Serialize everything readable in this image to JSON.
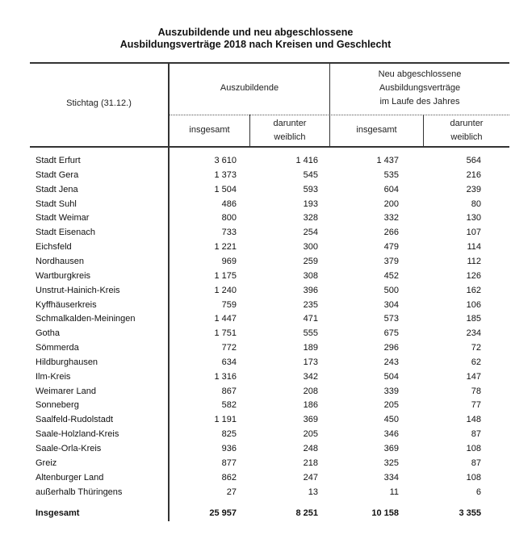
{
  "title": {
    "line1": "Auszubildende und neu abgeschlossene",
    "line2": "Ausbildungsverträge 2018 nach Kreisen und Geschlecht"
  },
  "header": {
    "stub": "Stichtag (31.12.)",
    "group1": "Auszubildende",
    "group2": [
      "Neu abgeschlossene",
      "Ausbildungsverträge",
      "im Laufe des Jahres"
    ],
    "sub_total": "insgesamt",
    "sub_female": [
      "darunter",
      "weiblich"
    ]
  },
  "rows": [
    {
      "name": "Stadt Erfurt",
      "a": "3 610",
      "aw": "1 416",
      "n": "1 437",
      "nw": "564"
    },
    {
      "name": "Stadt Gera",
      "a": "1 373",
      "aw": "545",
      "n": "535",
      "nw": "216"
    },
    {
      "name": "Stadt Jena",
      "a": "1 504",
      "aw": "593",
      "n": "604",
      "nw": "239"
    },
    {
      "name": "Stadt Suhl",
      "a": "486",
      "aw": "193",
      "n": "200",
      "nw": "80"
    },
    {
      "name": "Stadt Weimar",
      "a": "800",
      "aw": "328",
      "n": "332",
      "nw": "130"
    },
    {
      "name": "Stadt Eisenach",
      "a": "733",
      "aw": "254",
      "n": "266",
      "nw": "107"
    },
    {
      "name": "Eichsfeld",
      "a": "1 221",
      "aw": "300",
      "n": "479",
      "nw": "114"
    },
    {
      "name": "Nordhausen",
      "a": "969",
      "aw": "259",
      "n": "379",
      "nw": "112"
    },
    {
      "name": "Wartburgkreis",
      "a": "1 175",
      "aw": "308",
      "n": "452",
      "nw": "126"
    },
    {
      "name": "Unstrut-Hainich-Kreis",
      "a": "1 240",
      "aw": "396",
      "n": "500",
      "nw": "162"
    },
    {
      "name": "Kyffhäuserkreis",
      "a": "759",
      "aw": "235",
      "n": "304",
      "nw": "106"
    },
    {
      "name": "Schmalkalden-Meiningen",
      "a": "1 447",
      "aw": "471",
      "n": "573",
      "nw": "185"
    },
    {
      "name": "Gotha",
      "a": "1 751",
      "aw": "555",
      "n": "675",
      "nw": "234"
    },
    {
      "name": "Sömmerda",
      "a": "772",
      "aw": "189",
      "n": "296",
      "nw": "72"
    },
    {
      "name": "Hildburghausen",
      "a": "634",
      "aw": "173",
      "n": "243",
      "nw": "62"
    },
    {
      "name": "Ilm-Kreis",
      "a": "1 316",
      "aw": "342",
      "n": "504",
      "nw": "147"
    },
    {
      "name": "Weimarer Land",
      "a": "867",
      "aw": "208",
      "n": "339",
      "nw": "78"
    },
    {
      "name": "Sonneberg",
      "a": "582",
      "aw": "186",
      "n": "205",
      "nw": "77"
    },
    {
      "name": "Saalfeld-Rudolstadt",
      "a": "1 191",
      "aw": "369",
      "n": "450",
      "nw": "148"
    },
    {
      "name": "Saale-Holzland-Kreis",
      "a": "825",
      "aw": "205",
      "n": "346",
      "nw": "87"
    },
    {
      "name": "Saale-Orla-Kreis",
      "a": "936",
      "aw": "248",
      "n": "369",
      "nw": "108"
    },
    {
      "name": "Greiz",
      "a": "877",
      "aw": "218",
      "n": "325",
      "nw": "87"
    },
    {
      "name": "Altenburger Land",
      "a": "862",
      "aw": "247",
      "n": "334",
      "nw": "108"
    },
    {
      "name": "außerhalb Thüringens",
      "a": "27",
      "aw": "13",
      "n": "11",
      "nw": "6"
    }
  ],
  "total": {
    "name": "Insgesamt",
    "a": "25 957",
    "aw": "8 251",
    "n": "10 158",
    "nw": "3 355"
  }
}
